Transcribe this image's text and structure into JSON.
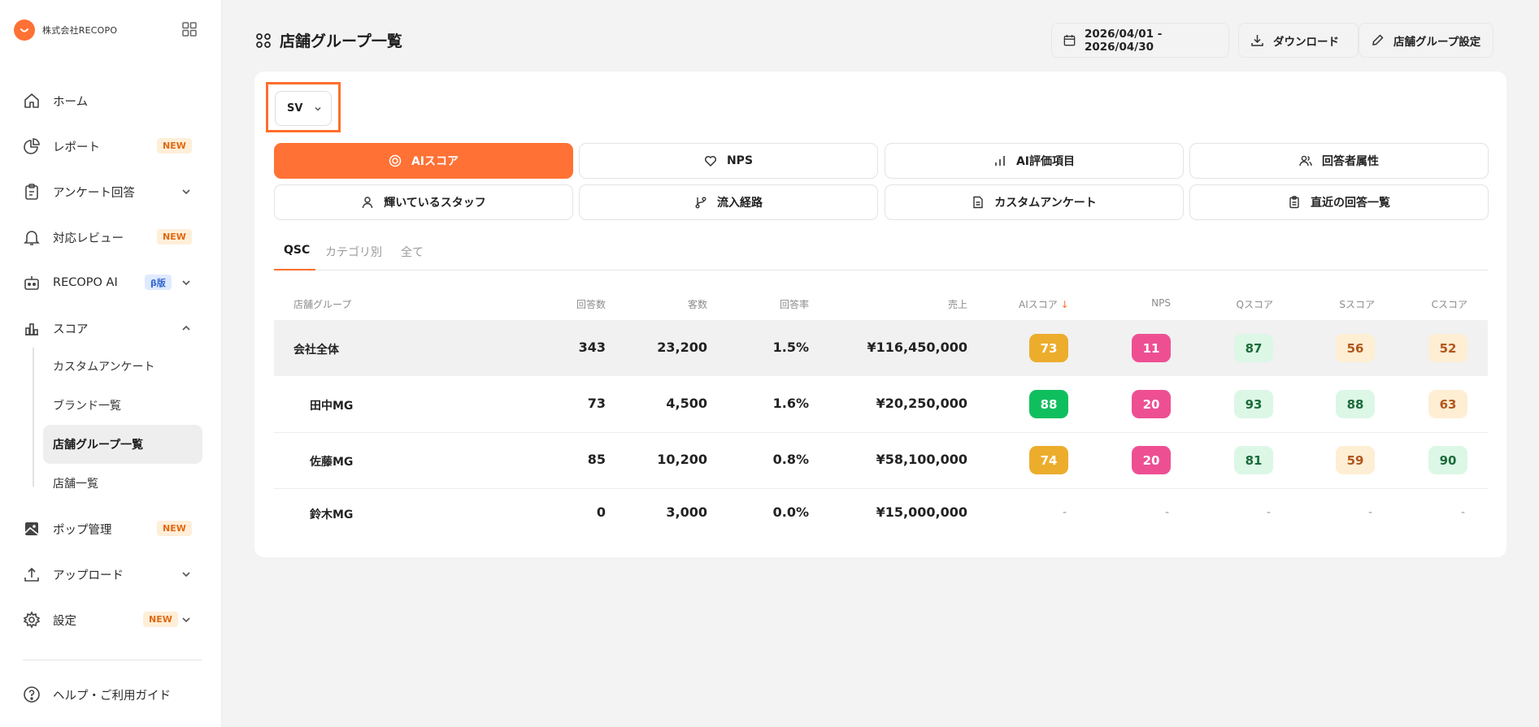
{
  "sidebar": {
    "company": "株式会社RECOPO",
    "items": {
      "home": "ホーム",
      "report": "レポート",
      "survey": "アンケート回答",
      "review": "対応レビュー",
      "ai": "RECOPO AI",
      "score": "スコア",
      "pop": "ポップ管理",
      "upload": "アップロード",
      "settings": "設定",
      "help": "ヘルプ・ご利用ガイド"
    },
    "badges": {
      "new": "NEW",
      "beta": "β版"
    },
    "score_sub": [
      "カスタムアンケート",
      "ブランド一覧",
      "店舗グループ一覧",
      "店舗一覧"
    ]
  },
  "header": {
    "title": "店舗グループ一覧",
    "date_range": "2026/04/01 - 2026/04/30",
    "download": "ダウンロード",
    "group_settings": "店舗グループ設定"
  },
  "selector": {
    "value": "SV"
  },
  "tabs": [
    "AIスコア",
    "NPS",
    "AI評価項目",
    "回答者属性",
    "輝いているスタッフ",
    "流入経路",
    "カスタムアンケート",
    "直近の回答一覧"
  ],
  "subtabs": [
    "QSC",
    "カテゴリ別",
    "全て"
  ],
  "table": {
    "headers": {
      "group": "店舗グループ",
      "responses": "回答数",
      "customers": "客数",
      "rate": "回答率",
      "sales": "売上",
      "ai": "AIスコア",
      "sort_arrow": "↓",
      "nps": "NPS",
      "q": "Qスコア",
      "s": "Sスコア",
      "c": "Cスコア"
    },
    "rows": [
      {
        "name": "会社全体",
        "responses": "343",
        "customers": "23,200",
        "rate": "1.5%",
        "sales": "¥116,450,000",
        "ai": "73",
        "nps": "11",
        "q": "87",
        "s": "56",
        "c": "52"
      },
      {
        "name": "田中MG",
        "responses": "73",
        "customers": "4,500",
        "rate": "1.6%",
        "sales": "¥20,250,000",
        "ai": "88",
        "nps": "20",
        "q": "93",
        "s": "88",
        "c": "63"
      },
      {
        "name": "佐藤MG",
        "responses": "85",
        "customers": "10,200",
        "rate": "0.8%",
        "sales": "¥58,100,000",
        "ai": "74",
        "nps": "20",
        "q": "81",
        "s": "59",
        "c": "90"
      },
      {
        "name": "鈴木MG",
        "responses": "0",
        "customers": "3,000",
        "rate": "0.0%",
        "sales": "¥15,000,000",
        "ai": "-",
        "nps": "-",
        "q": "-",
        "s": "-",
        "c": "-"
      }
    ]
  },
  "colors": {
    "accent": "#ff7134",
    "ai_amber": "#ecad2c",
    "ai_green": "#0fbf5e",
    "nps_pink": "#ee4f93",
    "good_bg": "#dcf7e6",
    "good_fg": "#1c6b3a",
    "warn_bg": "#fdeed4",
    "warn_fg": "#b3561e"
  }
}
